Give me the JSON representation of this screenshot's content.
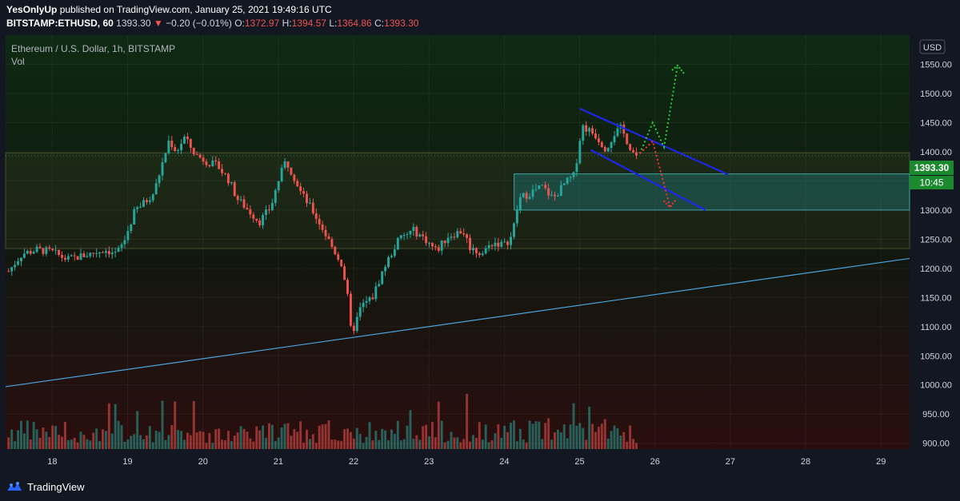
{
  "header": {
    "author": "YesOnlyUp",
    "publish_line": "published on TradingView.com, January 25, 2021 19:49:16 UTC",
    "symbol": "BITSTAMP:ETHUSD, 60",
    "last": "1393.30",
    "change_arrow": "▼",
    "change": "−0.20 (−0.01%)",
    "o_label": "O:",
    "o_value": "1372.97",
    "h_label": "H:",
    "h_value": "1394.57",
    "l_label": "L:",
    "l_value": "1364.86",
    "c_label": "C:",
    "c_value": "1393.30"
  },
  "legend": {
    "title": "Ethereum / U.S. Dollar, 1h, BITSTAMP",
    "volume_label": "Vol"
  },
  "price_axis": {
    "currency": "USD",
    "price_tag": "1393.30",
    "countdown": "10:45"
  },
  "footer": {
    "brand": "TradingView"
  },
  "colors": {
    "background": "#131722",
    "up": "#26a69a",
    "down": "#ef5350",
    "tag_green": "#1b8a2e",
    "channel_blue": "#1f25e6",
    "trendline": "#4aa3df",
    "zone": "#1e6b6b",
    "projection_up": "#2ecc40",
    "projection_down": "#ff3030"
  },
  "chart_data": {
    "type": "candlestick",
    "title": "Ethereum / U.S. Dollar, 1h, BITSTAMP",
    "x_tick_labels": [
      "18",
      "19",
      "20",
      "21",
      "22",
      "23",
      "24",
      "25",
      "26",
      "27",
      "28",
      "29"
    ],
    "y_ticks": [
      900,
      950,
      1000,
      1050,
      1100,
      1150,
      1200,
      1250,
      1300,
      1350,
      1400,
      1450,
      1500,
      1550
    ],
    "y_tick_labels": [
      "900.00",
      "950.00",
      "1000.00",
      "1050.00",
      "1100.00",
      "1150.00",
      "1200.00",
      "1250.00",
      "1300.00",
      "1350.00",
      "1400.00",
      "1450.00",
      "1500.00",
      "1550.00"
    ],
    "ylim": [
      890,
      1600
    ],
    "xlim": [
      17.38,
      29.38
    ],
    "last_price": 1393.3,
    "price_path": [
      [
        17.42,
        1195
      ],
      [
        17.6,
        1225
      ],
      [
        17.8,
        1232
      ],
      [
        18.0,
        1228
      ],
      [
        18.2,
        1215
      ],
      [
        18.5,
        1225
      ],
      [
        18.7,
        1232
      ],
      [
        18.85,
        1225
      ],
      [
        18.95,
        1245
      ],
      [
        19.1,
        1300
      ],
      [
        19.2,
        1310
      ],
      [
        19.35,
        1330
      ],
      [
        19.45,
        1375
      ],
      [
        19.55,
        1420
      ],
      [
        19.65,
        1400
      ],
      [
        19.75,
        1425
      ],
      [
        19.9,
        1395
      ],
      [
        20.1,
        1380
      ],
      [
        20.2,
        1375
      ],
      [
        20.35,
        1350
      ],
      [
        20.45,
        1320
      ],
      [
        20.6,
        1300
      ],
      [
        20.75,
        1280
      ],
      [
        20.9,
        1305
      ],
      [
        21.0,
        1350
      ],
      [
        21.1,
        1385
      ],
      [
        21.2,
        1360
      ],
      [
        21.3,
        1330
      ],
      [
        21.45,
        1300
      ],
      [
        21.6,
        1265
      ],
      [
        21.7,
        1240
      ],
      [
        21.85,
        1205
      ],
      [
        21.92,
        1150
      ],
      [
        21.97,
        1085
      ],
      [
        22.1,
        1135
      ],
      [
        22.25,
        1150
      ],
      [
        22.4,
        1200
      ],
      [
        22.6,
        1250
      ],
      [
        22.8,
        1265
      ],
      [
        22.95,
        1250
      ],
      [
        23.1,
        1230
      ],
      [
        23.25,
        1255
      ],
      [
        23.45,
        1265
      ],
      [
        23.55,
        1235
      ],
      [
        23.7,
        1225
      ],
      [
        23.85,
        1245
      ],
      [
        24.0,
        1240
      ],
      [
        24.1,
        1255
      ],
      [
        24.2,
        1320
      ],
      [
        24.35,
        1330
      ],
      [
        24.5,
        1340
      ],
      [
        24.65,
        1320
      ],
      [
        24.8,
        1345
      ],
      [
        24.93,
        1360
      ],
      [
        25.03,
        1445
      ],
      [
        25.2,
        1430
      ],
      [
        25.35,
        1405
      ],
      [
        25.45,
        1430
      ],
      [
        25.55,
        1440
      ],
      [
        25.7,
        1400
      ],
      [
        25.78,
        1393.3
      ]
    ],
    "volume_range": [
      0,
      100
    ],
    "annotations": {
      "channel_upper": [
        [
          25.0,
          1474
        ],
        [
          26.97,
          1361
        ]
      ],
      "channel_lower": [
        [
          25.15,
          1403
        ],
        [
          26.67,
          1300
        ]
      ],
      "resistance_band": [
        1234,
        1398
      ],
      "demand_zone": {
        "x": [
          24.13,
          29.38
        ],
        "y": [
          1300,
          1362
        ]
      },
      "trendline": [
        [
          17.38,
          997
        ],
        [
          29.38,
          1217
        ]
      ],
      "projection_up": [
        [
          25.8,
          1397
        ],
        [
          25.97,
          1450
        ],
        [
          26.12,
          1408
        ],
        [
          26.3,
          1548
        ]
      ],
      "projection_down": [
        [
          25.8,
          1397
        ],
        [
          25.97,
          1418
        ],
        [
          26.2,
          1305
        ]
      ]
    }
  }
}
